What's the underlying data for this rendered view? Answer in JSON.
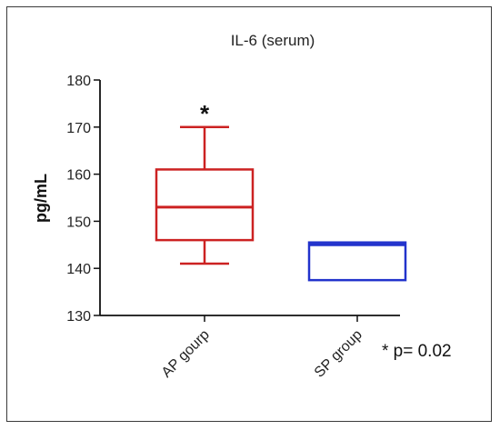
{
  "chart_data": {
    "type": "boxplot",
    "title": "IL-6 (serum)",
    "xlabel": "",
    "ylabel": "pg/mL",
    "ylim": [
      130,
      180
    ],
    "yticks": [
      130,
      140,
      150,
      160,
      170,
      180
    ],
    "categories": [
      "AP gourp",
      "SP group"
    ],
    "boxes": [
      {
        "category": "AP gourp",
        "min": 141,
        "q1": 146,
        "median": 153,
        "q3": 161,
        "max": 170,
        "color": "#cc2222",
        "marker": "*"
      },
      {
        "category": "SP group",
        "min": 137.5,
        "q1": 137.5,
        "median": 145,
        "q3": 145.5,
        "max": 145.5,
        "color": "#2233cc",
        "marker": ""
      }
    ],
    "annotation": "* p= 0.02",
    "grid": false
  }
}
